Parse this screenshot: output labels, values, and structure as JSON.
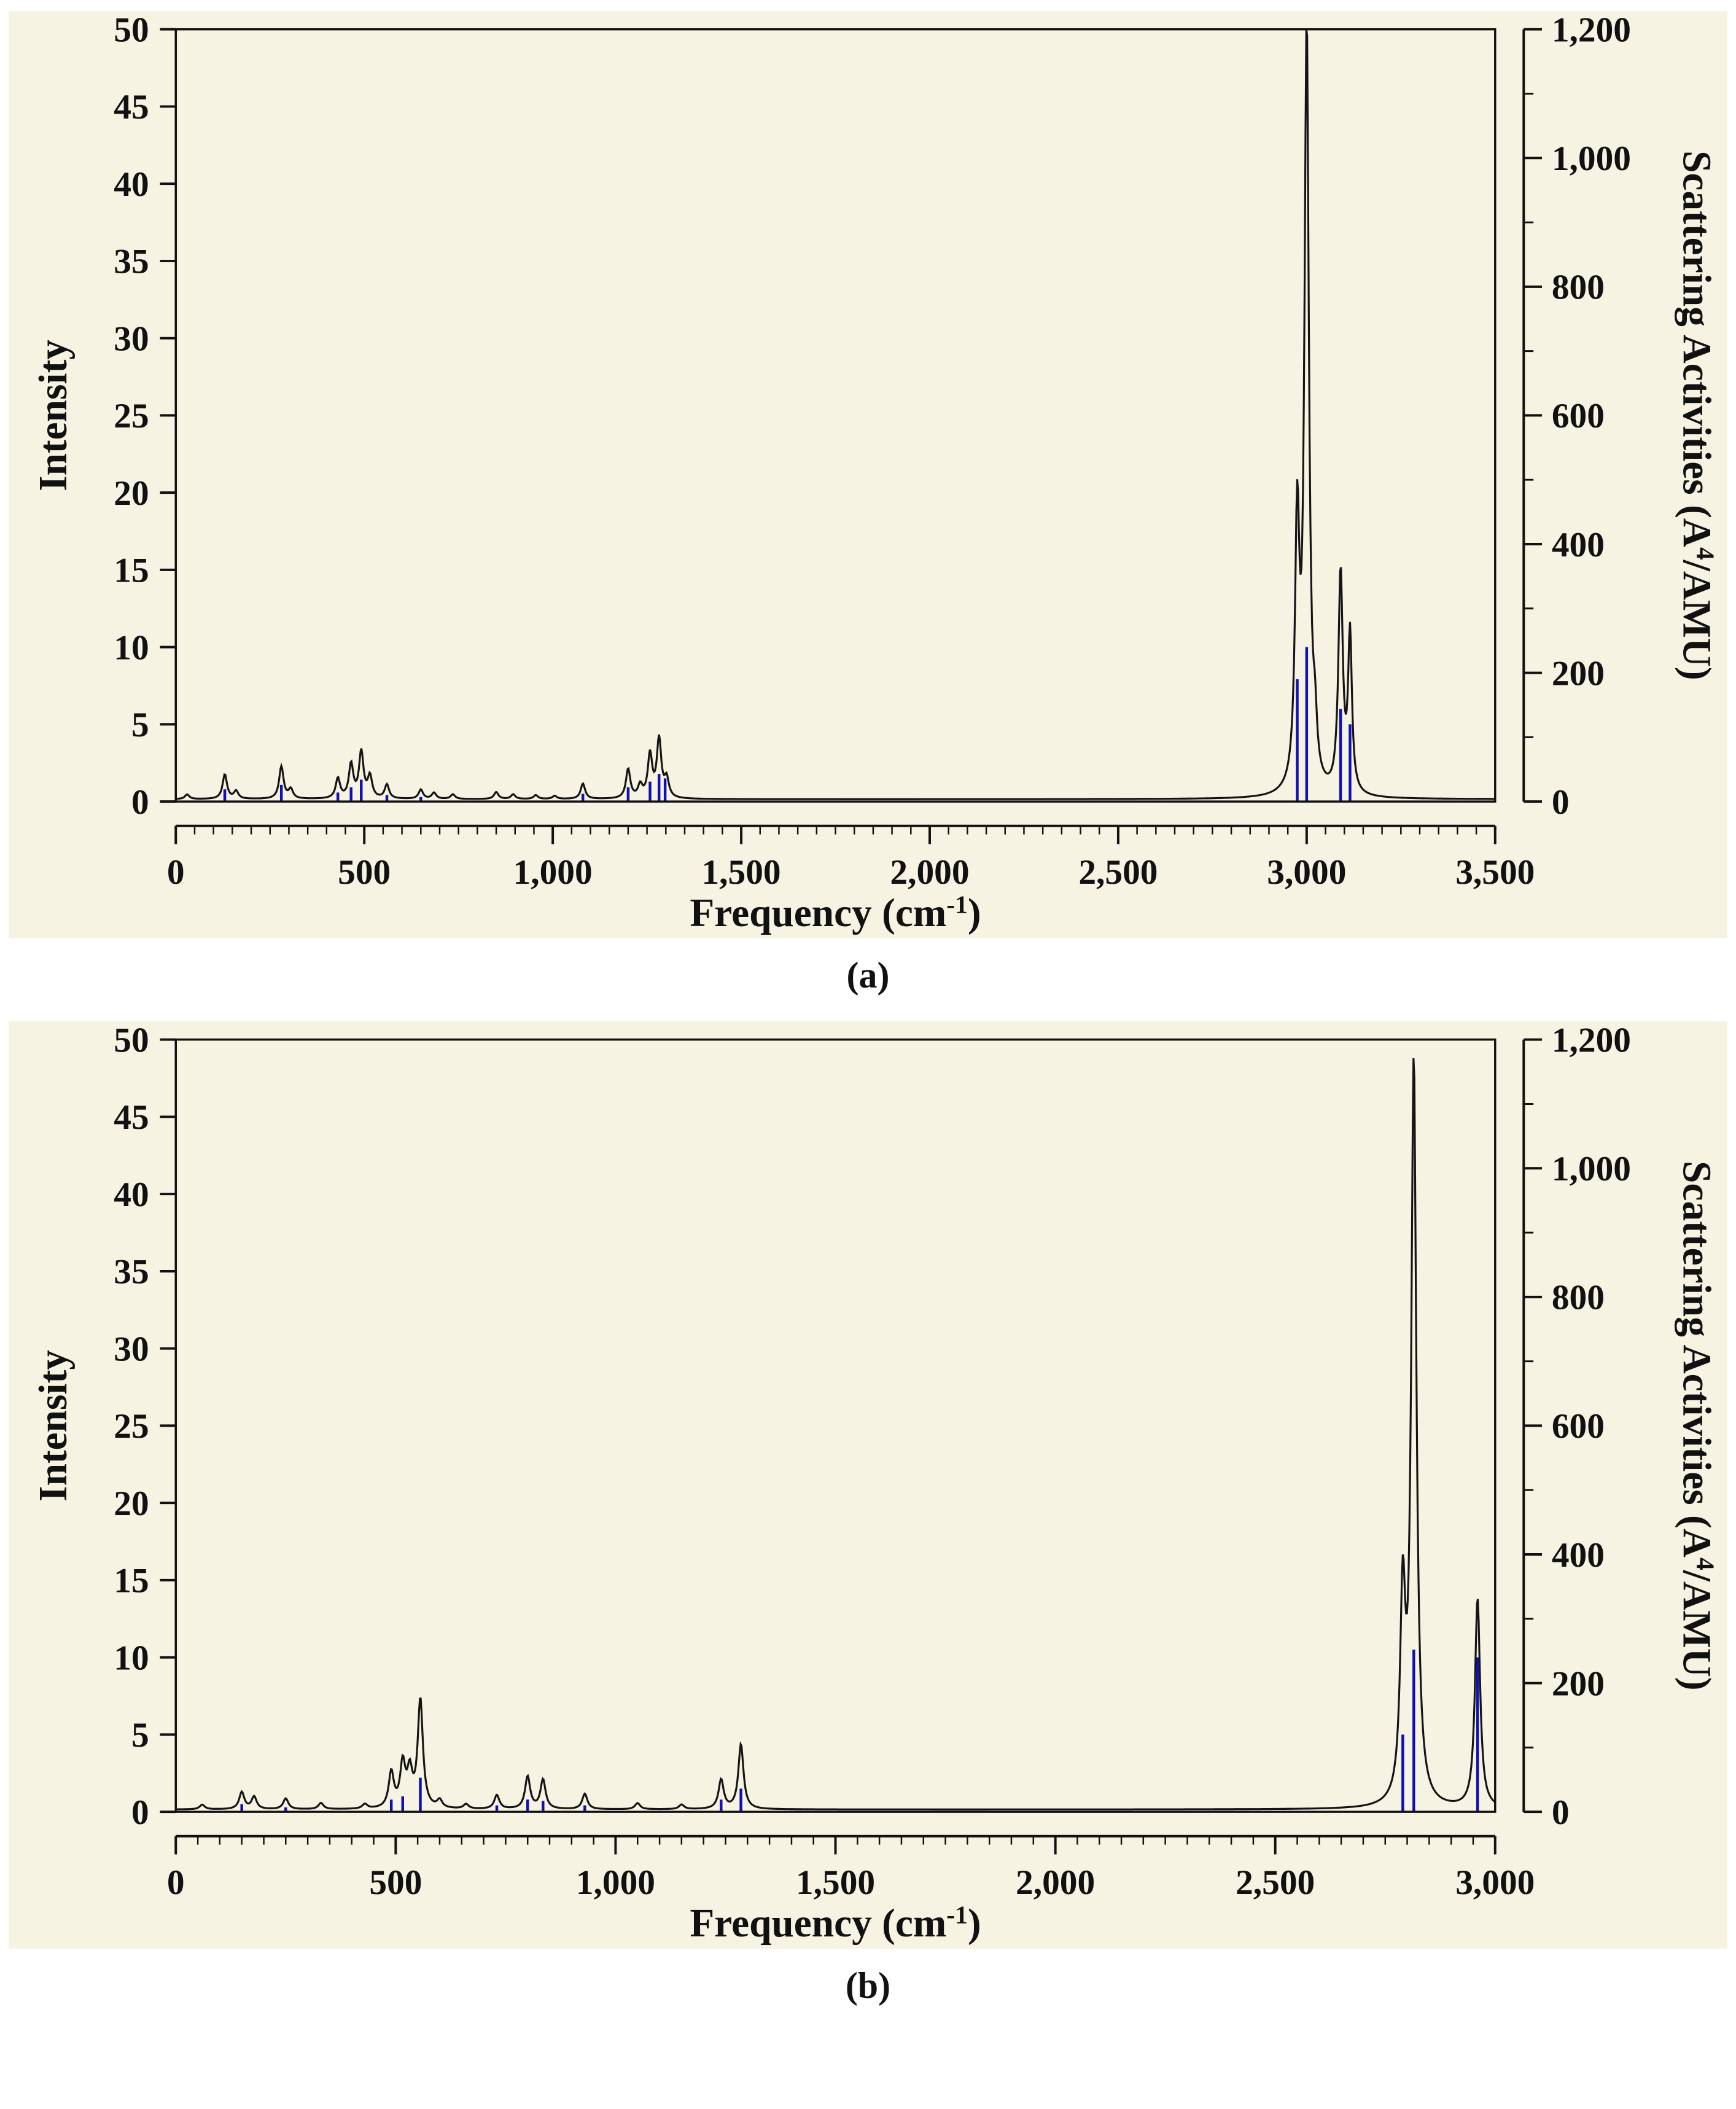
{
  "captions": {
    "a": "(a)",
    "b": "(b)"
  },
  "chart_data": [
    {
      "id": "a",
      "type": "line",
      "title": "",
      "xlabel": {
        "pre": "Frequency (cm",
        "sup": "-1",
        "post": ")"
      },
      "ylabel_left": "Intensity",
      "ylabel_right": {
        "pre": "Scattering Activities (A",
        "sup": "4",
        "post": "/AMU)"
      },
      "xlim": [
        0,
        3500
      ],
      "x_axis": {
        "values": [
          0,
          500,
          1000,
          1500,
          2000,
          2500,
          3000,
          3500
        ],
        "labels": [
          "0",
          "500",
          "1,000",
          "1,500",
          "2,000",
          "2,500",
          "3,000",
          "3,500"
        ],
        "minor_step": 50
      },
      "ylim_left": [
        0,
        50
      ],
      "y_left": {
        "values": [
          0,
          5,
          10,
          15,
          20,
          25,
          30,
          35,
          40,
          45,
          50
        ],
        "labels": [
          "0",
          "5",
          "10",
          "15",
          "20",
          "25",
          "30",
          "35",
          "40",
          "45",
          "50"
        ]
      },
      "ylim_right": [
        0,
        1200
      ],
      "y_right": {
        "values": [
          0,
          200,
          400,
          600,
          800,
          1000,
          1200
        ],
        "labels": [
          "0",
          "200",
          "400",
          "600",
          "800",
          "1,000",
          "1,200"
        ],
        "minor_step": 100
      },
      "grid": false,
      "legend": null,
      "baseline": 0.15,
      "colors": {
        "curve": "#141414",
        "sticks": "#0f0fb4",
        "axis": "#111111",
        "panel_bg": "#f6f3e2"
      },
      "peaks_intensity": [
        [
          30,
          0.3
        ],
        [
          130,
          1.6
        ],
        [
          160,
          0.5
        ],
        [
          280,
          2.1
        ],
        [
          305,
          0.6
        ],
        [
          430,
          1.3
        ],
        [
          465,
          2.2
        ],
        [
          492,
          3.0
        ],
        [
          515,
          1.4
        ],
        [
          560,
          0.9
        ],
        [
          650,
          0.6
        ],
        [
          685,
          0.4
        ],
        [
          735,
          0.3
        ],
        [
          850,
          0.45
        ],
        [
          895,
          0.3
        ],
        [
          955,
          0.25
        ],
        [
          1005,
          0.2
        ],
        [
          1080,
          1.0
        ],
        [
          1200,
          1.9
        ],
        [
          1232,
          0.8
        ],
        [
          1258,
          2.8
        ],
        [
          1282,
          3.8
        ],
        [
          1302,
          1.2
        ],
        [
          2975,
          17,
          7
        ],
        [
          3000,
          49.5,
          7
        ],
        [
          3022,
          3,
          6
        ],
        [
          3090,
          14.3,
          7
        ],
        [
          3115,
          10.2,
          6
        ]
      ],
      "sticks_activity": [
        [
          130,
          19
        ],
        [
          280,
          26
        ],
        [
          430,
          14
        ],
        [
          465,
          22
        ],
        [
          492,
          34
        ],
        [
          560,
          10
        ],
        [
          650,
          7
        ],
        [
          1080,
          12
        ],
        [
          1200,
          22
        ],
        [
          1258,
          31
        ],
        [
          1282,
          43
        ],
        [
          1298,
          36
        ],
        [
          2975,
          190
        ],
        [
          3000,
          240
        ],
        [
          3090,
          144
        ],
        [
          3115,
          120
        ]
      ]
    },
    {
      "id": "b",
      "type": "line",
      "title": "",
      "xlabel": {
        "pre": "Frequency (cm",
        "sup": "-1",
        "post": ")"
      },
      "ylabel_left": "Intensity",
      "ylabel_right": {
        "pre": "Scattering Activities (A",
        "sup": "4",
        "post": "/AMU)"
      },
      "xlim": [
        0,
        3000
      ],
      "x_axis": {
        "values": [
          0,
          500,
          1000,
          1500,
          2000,
          2500,
          3000
        ],
        "labels": [
          "0",
          "500",
          "1,000",
          "1,500",
          "2,000",
          "2,500",
          "3,000"
        ],
        "minor_step": 50
      },
      "ylim_left": [
        0,
        50
      ],
      "y_left": {
        "values": [
          0,
          5,
          10,
          15,
          20,
          25,
          30,
          35,
          40,
          45,
          50
        ],
        "labels": [
          "0",
          "5",
          "10",
          "15",
          "20",
          "25",
          "30",
          "35",
          "40",
          "45",
          "50"
        ]
      },
      "ylim_right": [
        0,
        1200
      ],
      "y_right": {
        "values": [
          0,
          200,
          400,
          600,
          800,
          1000,
          1200
        ],
        "labels": [
          "0",
          "200",
          "400",
          "600",
          "800",
          "1,000",
          "1,200"
        ],
        "minor_step": 100
      },
      "grid": false,
      "legend": null,
      "baseline": 0.15,
      "colors": {
        "curve": "#141414",
        "sticks": "#0f0fb4",
        "axis": "#111111",
        "panel_bg": "#f6f3e2"
      },
      "peaks_intensity": [
        [
          60,
          0.3
        ],
        [
          150,
          1.1
        ],
        [
          178,
          0.8
        ],
        [
          250,
          0.7
        ],
        [
          330,
          0.4
        ],
        [
          430,
          0.3
        ],
        [
          490,
          2.3
        ],
        [
          516,
          2.8
        ],
        [
          532,
          2.2
        ],
        [
          556,
          7.0
        ],
        [
          600,
          0.5
        ],
        [
          660,
          0.3
        ],
        [
          730,
          0.9
        ],
        [
          800,
          2.1
        ],
        [
          835,
          1.9
        ],
        [
          930,
          1.0
        ],
        [
          1050,
          0.4
        ],
        [
          1150,
          0.3
        ],
        [
          1240,
          1.9
        ],
        [
          1285,
          4.2
        ],
        [
          2790,
          13,
          7
        ],
        [
          2815,
          48,
          7
        ],
        [
          2960,
          13.6,
          7
        ]
      ],
      "sticks_activity": [
        [
          150,
          12
        ],
        [
          250,
          7
        ],
        [
          490,
          19
        ],
        [
          516,
          24
        ],
        [
          556,
          53
        ],
        [
          730,
          10
        ],
        [
          800,
          19
        ],
        [
          835,
          17
        ],
        [
          930,
          10
        ],
        [
          1240,
          19
        ],
        [
          1285,
          36
        ],
        [
          2790,
          120
        ],
        [
          2815,
          252
        ],
        [
          2960,
          240
        ]
      ]
    }
  ]
}
